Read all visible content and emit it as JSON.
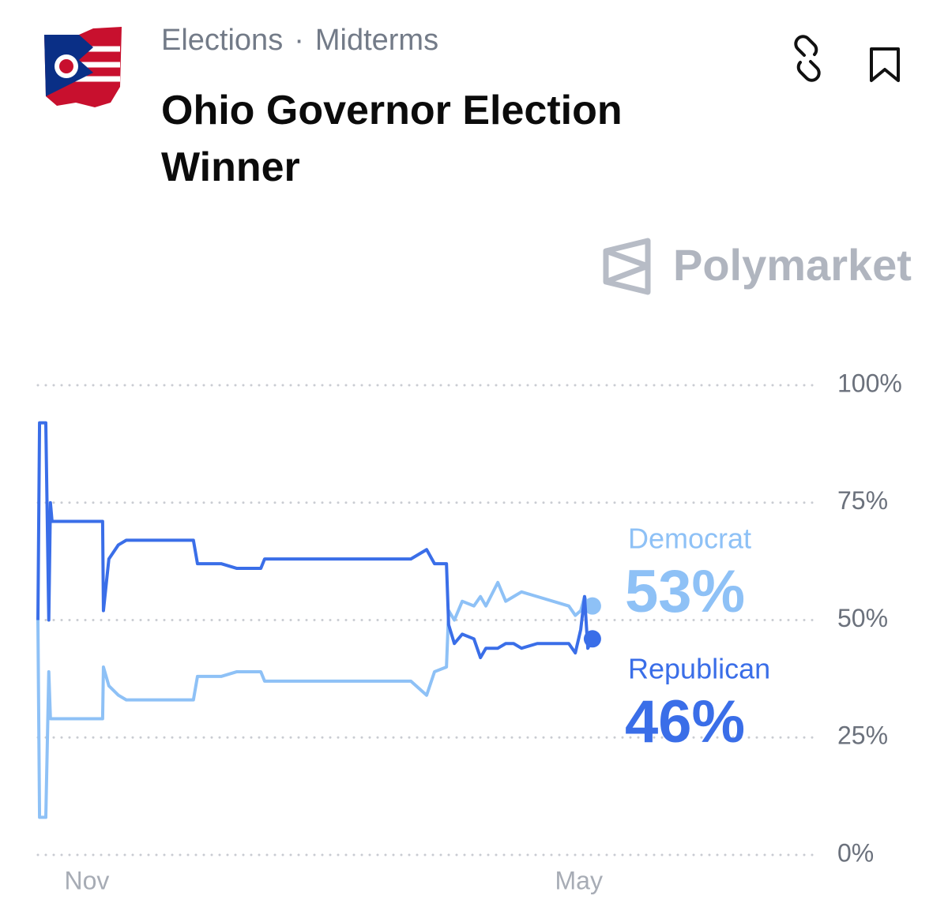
{
  "header": {
    "breadcrumb": [
      "Elections",
      "Midterms"
    ],
    "brand": "Polymarket"
  },
  "chart_data": {
    "type": "line",
    "title": "Ohio Governor Election Winner",
    "x": [
      -18.0,
      -17.4,
      -15.1,
      -14.0,
      -13.4,
      -12.8,
      5.8,
      6.1,
      8.1,
      11.6,
      14.5,
      39.2,
      40.7,
      49.4,
      55.2,
      64.0,
      65.4,
      119.2,
      125.0,
      127.9,
      132.3,
      133.1,
      135.2,
      138.1,
      142.4,
      144.8,
      146.8,
      151.2,
      154.1,
      157.0,
      159.9,
      165.7,
      177.3,
      179.7,
      181.7,
      183.1,
      184.3,
      186.0
    ],
    "series": [
      {
        "name": "Democrat",
        "color": "#8ec1f6",
        "values": [
          50,
          8,
          8,
          39,
          29,
          29,
          29,
          40,
          36,
          34,
          33,
          33,
          38,
          38,
          39,
          39,
          37,
          37,
          34,
          39,
          40,
          52,
          50,
          54,
          53,
          55,
          53,
          58,
          54,
          55,
          56,
          55,
          53,
          51,
          52,
          55,
          53,
          53
        ],
        "value_labels": [
          null,
          null,
          null,
          null,
          null,
          null,
          null,
          null,
          null,
          null,
          null,
          null,
          null,
          null,
          null,
          null,
          null,
          null,
          null,
          null,
          null,
          null,
          null,
          null,
          null,
          null,
          null,
          null,
          null,
          null,
          null,
          null,
          null,
          null,
          null,
          null,
          null,
          "53%"
        ]
      },
      {
        "name": "Republican",
        "color": "#3a6ee8",
        "values": [
          50,
          92,
          92,
          50,
          75,
          71,
          71,
          52,
          63,
          66,
          67,
          67,
          62,
          62,
          61,
          61,
          63,
          63,
          65,
          62,
          62,
          49,
          45,
          47,
          46,
          42,
          44,
          44,
          45,
          45,
          44,
          45,
          45,
          43,
          48,
          55,
          44,
          46
        ],
        "value_labels": [
          null,
          null,
          null,
          null,
          null,
          null,
          null,
          null,
          null,
          null,
          null,
          null,
          null,
          null,
          null,
          null,
          null,
          null,
          null,
          null,
          null,
          null,
          null,
          null,
          null,
          null,
          null,
          null,
          null,
          null,
          null,
          null,
          null,
          null,
          null,
          null,
          null,
          "46%"
        ]
      }
    ],
    "xlim": [
      -18.0,
      267.4
    ],
    "xticks": [
      {
        "value": 0,
        "label": "Nov"
      },
      {
        "value": 181,
        "label": "May"
      }
    ],
    "ylim": [
      0,
      100
    ],
    "yticks": [
      {
        "value": 0,
        "label": "0%"
      },
      {
        "value": 25,
        "label": "25%"
      },
      {
        "value": 50,
        "label": "50%"
      },
      {
        "value": 75,
        "label": "75%"
      },
      {
        "value": 100,
        "label": "100%"
      }
    ],
    "grid": true
  }
}
